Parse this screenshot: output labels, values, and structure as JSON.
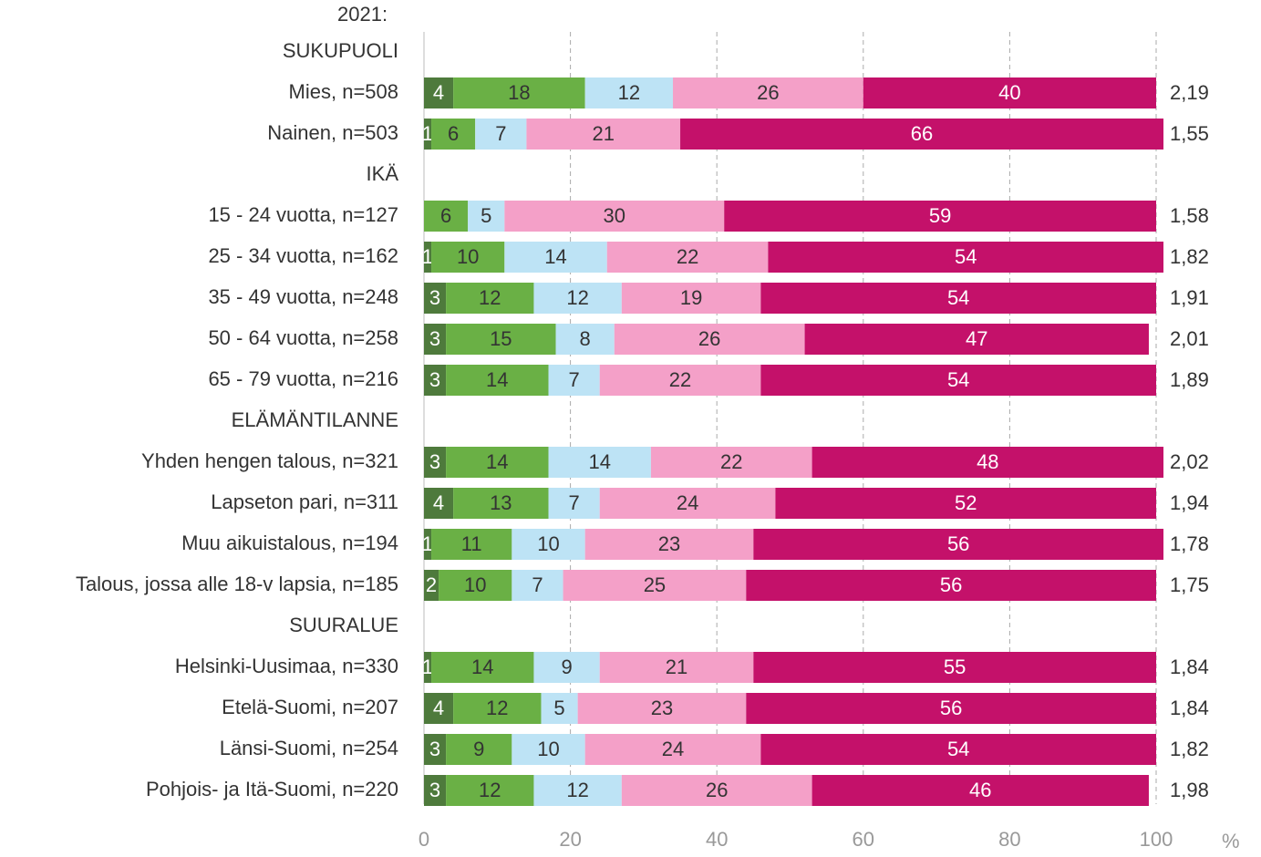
{
  "chart_data": {
    "type": "stacked-bar-horizontal",
    "title": "2021:",
    "x_label": "%",
    "categories": [
      "SUKUPUOLI",
      "Mies, n=508",
      "Nainen, n=503",
      "IKÄ",
      "15 - 24 vuotta, n=127",
      "25 - 34 vuotta, n=162",
      "35 - 49 vuotta, n=248",
      "50 - 64 vuotta, n=258",
      "65 - 79 vuotta, n=216",
      "ELÄMÄNTILANNE",
      "Yhden hengen talous, n=321",
      "Lapseton pari, n=311",
      "Muu aikuistalous, n=194",
      "Talous, jossa alle 18-v lapsia, n=185",
      "SUURALUE",
      "Helsinki-Uusimaa, n=330",
      "Etelä-Suomi, n=207",
      "Länsi-Suomi, n=254",
      "Pohjois- ja Itä-Suomi, n=220"
    ],
    "series": [
      {
        "color": "#4e7a3c",
        "label_color": "#ffffff",
        "values": [
          null,
          4,
          1,
          null,
          null,
          1,
          3,
          3,
          3,
          null,
          3,
          4,
          1,
          2,
          null,
          1,
          4,
          3,
          3
        ]
      },
      {
        "color": "#6ab045",
        "label_color": "#333333",
        "values": [
          null,
          18,
          6,
          null,
          6,
          10,
          12,
          15,
          14,
          null,
          14,
          13,
          11,
          10,
          null,
          14,
          12,
          9,
          12
        ]
      },
      {
        "color": "#bde3f5",
        "label_color": "#333333",
        "values": [
          null,
          12,
          7,
          null,
          5,
          14,
          12,
          8,
          7,
          null,
          14,
          7,
          10,
          7,
          null,
          9,
          5,
          10,
          12
        ]
      },
      {
        "color": "#f4a0c8",
        "label_color": "#333333",
        "values": [
          null,
          26,
          21,
          null,
          30,
          22,
          19,
          26,
          22,
          null,
          22,
          24,
          23,
          25,
          null,
          21,
          23,
          24,
          26
        ]
      },
      {
        "color": "#c4116a",
        "label_color": "#ffffff",
        "values": [
          null,
          40,
          66,
          null,
          59,
          54,
          54,
          47,
          54,
          null,
          48,
          52,
          56,
          56,
          null,
          55,
          56,
          54,
          46
        ]
      }
    ],
    "means": {
      "values": [
        null,
        2.19,
        1.55,
        null,
        1.58,
        1.82,
        1.91,
        2.01,
        1.89,
        null,
        2.02,
        1.94,
        1.78,
        1.75,
        null,
        1.84,
        1.84,
        1.82,
        1.98
      ],
      "value_labels": [
        null,
        "2,19",
        "1,55",
        null,
        "1,58",
        "1,82",
        "1,91",
        "2,01",
        "1,89",
        null,
        "2,02",
        "1,94",
        "1,78",
        "1,75",
        null,
        "1,84",
        "1,84",
        "1,82",
        "1,98"
      ]
    },
    "xlim": [
      0,
      100
    ],
    "xticks": [
      0,
      20,
      40,
      60,
      80,
      100
    ],
    "grid": true
  }
}
